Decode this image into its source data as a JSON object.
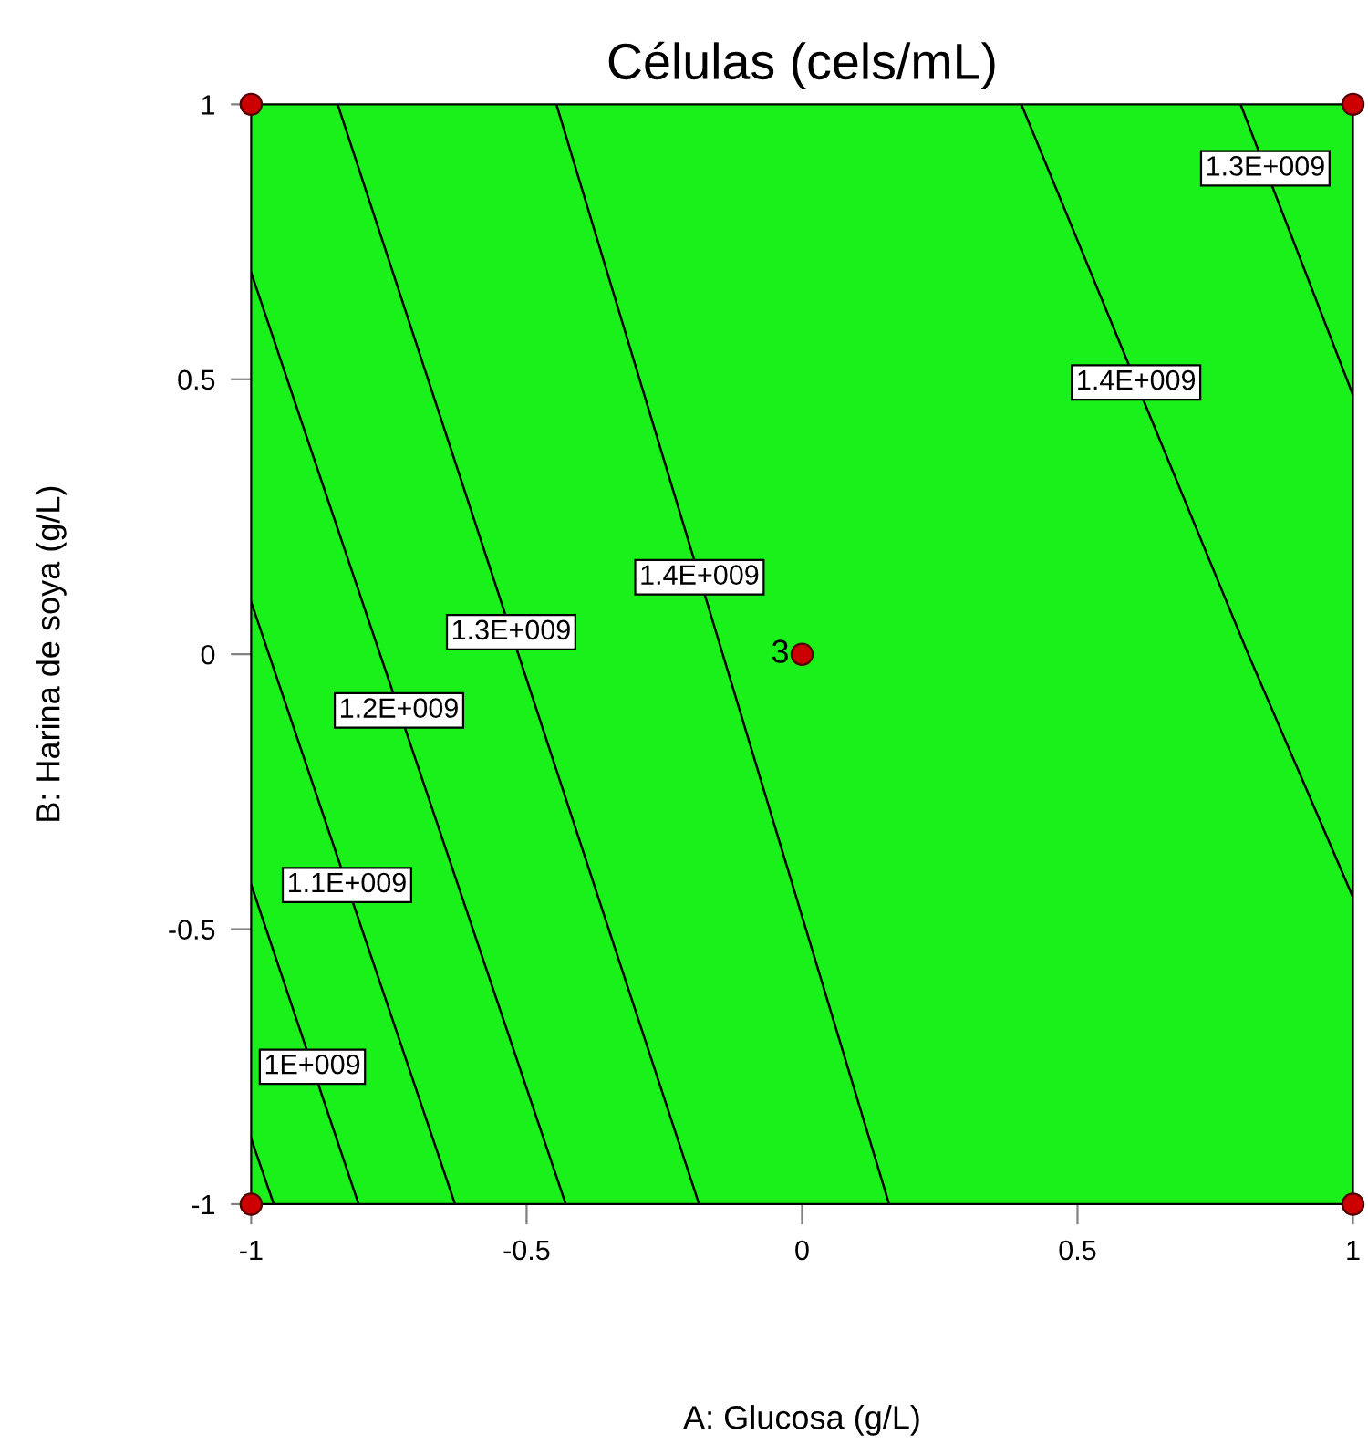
{
  "chart_data": {
    "type": "line",
    "title": "Células (cels/mL)",
    "xlabel": "A: Glucosa (g/L)",
    "ylabel": "B: Harina de soya (g/L)",
    "xlim": [
      -1,
      1
    ],
    "ylim": [
      -1,
      1
    ],
    "xticks": [
      -1,
      -0.5,
      0,
      0.5,
      1
    ],
    "yticks": [
      -1,
      -0.5,
      0,
      0.5,
      1
    ],
    "grid": false,
    "legend": false,
    "series": [
      {
        "color": "#000000",
        "x": [
          -1,
          -0.959
        ],
        "values": [
          -0.881,
          -1
        ]
      },
      {
        "name": "1E+009",
        "color": "#000000",
        "x": [
          -1,
          -0.805
        ],
        "values": [
          -0.419,
          -1
        ]
      },
      {
        "name": "1.1E+009",
        "color": "#000000",
        "x": [
          -1,
          -0.63
        ],
        "values": [
          0.095,
          -1
        ]
      },
      {
        "name": "1.2E+009",
        "color": "#000000",
        "x": [
          -1,
          -0.429
        ],
        "values": [
          0.694,
          -1
        ]
      },
      {
        "name": "1.3E+009",
        "color": "#000000",
        "x": [
          -0.843,
          -0.187
        ],
        "values": [
          1,
          -1
        ]
      },
      {
        "name": "1.4E+009",
        "color": "#000000",
        "x": [
          -0.446,
          0.158
        ],
        "values": [
          1,
          -1
        ]
      },
      {
        "name": "1.4E+009",
        "color": "#000000",
        "x": [
          0.398,
          0.81,
          1
        ],
        "values": [
          1,
          0,
          -0.442
        ]
      },
      {
        "name": "1.3E+009",
        "color": "#000000",
        "x": [
          0.796,
          1
        ],
        "values": [
          1,
          0.471
        ]
      },
      {
        "type": "scatter",
        "marker": "circle",
        "color": "#cc0000",
        "x": [
          -1,
          1,
          0,
          -1,
          1
        ],
        "values": [
          1,
          1,
          0,
          -1,
          -1
        ]
      }
    ],
    "annotations": [
      {
        "text": "3",
        "x": 0,
        "y": 0
      }
    ]
  }
}
